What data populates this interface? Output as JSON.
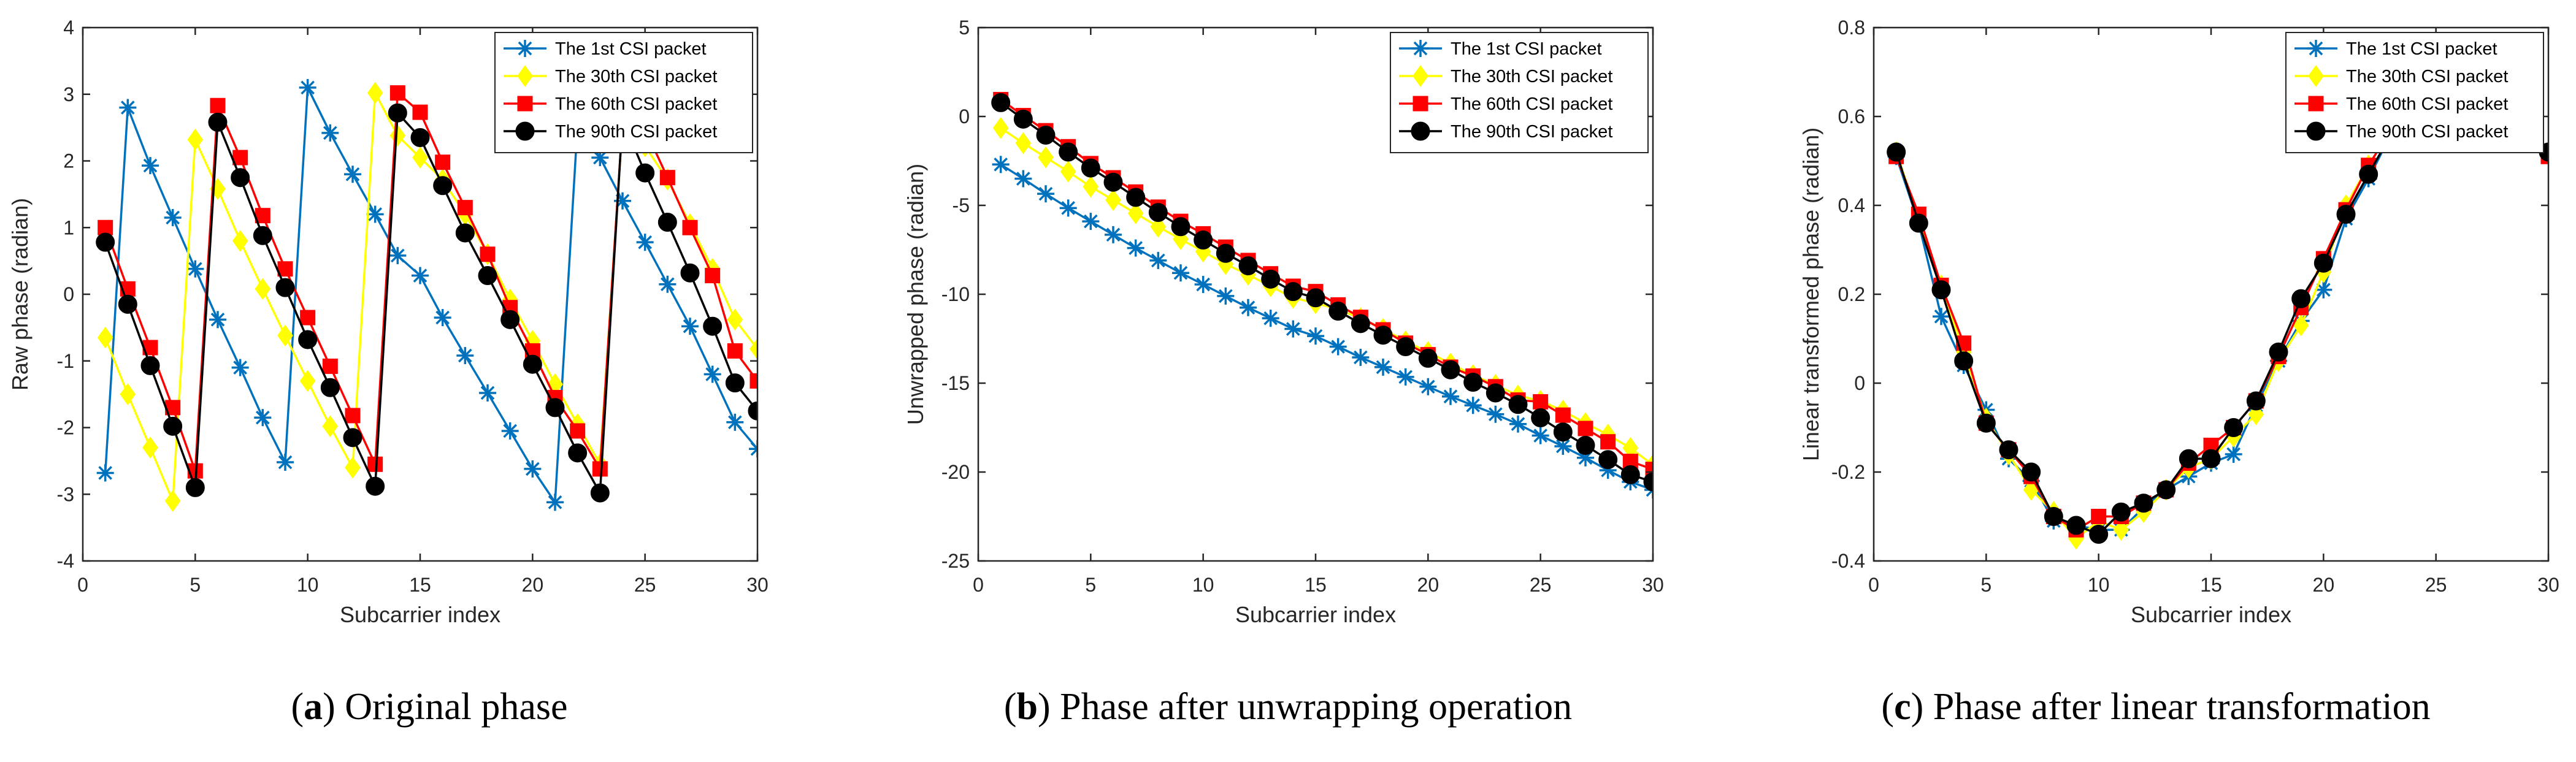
{
  "chart_data": [
    {
      "type": "line",
      "xlabel": "Subcarrier index",
      "ylabel": "Raw phase (radian)",
      "xlim": [
        0,
        30
      ],
      "ylim": [
        -4,
        4
      ],
      "xticks": [
        0,
        5,
        10,
        15,
        20,
        25,
        30
      ],
      "yticks": [
        -4,
        -3,
        -2,
        -1,
        0,
        1,
        2,
        3,
        4
      ],
      "grid": false,
      "legend_position": "top-right",
      "x": [
        1,
        2,
        3,
        4,
        5,
        6,
        7,
        8,
        9,
        10,
        11,
        12,
        13,
        14,
        15,
        16,
        17,
        18,
        19,
        20,
        21,
        22,
        23,
        24,
        25,
        26,
        27,
        28,
        29,
        30
      ],
      "series": [
        {
          "name": "The 1st CSI packet",
          "values": [
            -2.68,
            2.8,
            1.93,
            1.15,
            0.38,
            -0.38,
            -1.1,
            -1.85,
            -2.52,
            3.1,
            2.42,
            1.8,
            1.2,
            0.58,
            0.28,
            -0.35,
            -0.92,
            -1.48,
            -2.05,
            -2.62,
            -3.12,
            2.55,
            2.05,
            1.4,
            0.78,
            0.15,
            -0.48,
            -1.2,
            -1.92,
            -2.32
          ]
        },
        {
          "name": "The 30th CSI packet",
          "values": [
            -0.65,
            -1.5,
            -2.3,
            -3.1,
            2.32,
            1.58,
            0.8,
            0.08,
            -0.62,
            -1.3,
            -1.98,
            -2.6,
            3.02,
            2.38,
            2.05,
            1.72,
            1.2,
            0.6,
            -0.08,
            -0.7,
            -1.35,
            -1.95,
            -2.55,
            2.55,
            2.22,
            1.72,
            1.05,
            0.38,
            -0.38,
            -0.82
          ]
        },
        {
          "name": "The 60th CSI packet",
          "values": [
            1.0,
            0.08,
            -0.8,
            -1.7,
            -2.65,
            2.83,
            2.05,
            1.18,
            0.38,
            -0.35,
            -1.08,
            -1.82,
            -2.55,
            3.02,
            2.73,
            1.98,
            1.3,
            0.6,
            -0.2,
            -0.85,
            -1.55,
            -2.05,
            -2.62,
            2.58,
            2.48,
            1.75,
            1.0,
            0.28,
            -0.85,
            -1.3
          ]
        },
        {
          "name": "The 90th CSI packet",
          "values": [
            0.78,
            -0.15,
            -1.07,
            -1.98,
            -2.9,
            2.58,
            1.75,
            0.88,
            0.1,
            -0.68,
            -1.4,
            -2.15,
            -2.88,
            2.72,
            2.35,
            1.63,
            0.92,
            0.28,
            -0.38,
            -1.05,
            -1.7,
            -2.38,
            -2.98,
            2.62,
            1.82,
            1.08,
            0.32,
            -0.48,
            -1.33,
            -1.75
          ]
        }
      ]
    },
    {
      "type": "line",
      "xlabel": "Subcarrier index",
      "ylabel": "Unwrapped phase (radian)",
      "xlim": [
        0,
        30
      ],
      "ylim": [
        -25,
        5
      ],
      "xticks": [
        0,
        5,
        10,
        15,
        20,
        25,
        30
      ],
      "yticks": [
        -25,
        -20,
        -15,
        -10,
        -5,
        0,
        5
      ],
      "grid": false,
      "legend_position": "top-right",
      "x": [
        1,
        2,
        3,
        4,
        5,
        6,
        7,
        8,
        9,
        10,
        11,
        12,
        13,
        14,
        15,
        16,
        17,
        18,
        19,
        20,
        21,
        22,
        23,
        24,
        25,
        26,
        27,
        28,
        29,
        30
      ],
      "series": [
        {
          "name": "The 1st CSI packet",
          "values": [
            -2.7,
            -3.5,
            -4.35,
            -5.15,
            -5.9,
            -6.65,
            -7.4,
            -8.1,
            -8.8,
            -9.45,
            -10.1,
            -10.75,
            -11.35,
            -11.95,
            -12.35,
            -12.95,
            -13.55,
            -14.1,
            -14.65,
            -15.2,
            -15.75,
            -16.25,
            -16.75,
            -17.3,
            -17.95,
            -18.55,
            -19.2,
            -19.9,
            -20.55,
            -21.0
          ]
        },
        {
          "name": "The 30th CSI packet",
          "values": [
            -0.65,
            -1.5,
            -2.3,
            -3.1,
            -3.95,
            -4.7,
            -5.45,
            -6.2,
            -6.9,
            -7.6,
            -8.3,
            -8.9,
            -9.55,
            -10.2,
            -10.5,
            -10.85,
            -11.35,
            -11.95,
            -12.65,
            -13.25,
            -13.9,
            -14.55,
            -15.1,
            -15.7,
            -16.0,
            -16.55,
            -17.25,
            -17.9,
            -18.65,
            -19.6
          ]
        },
        {
          "name": "The 60th CSI packet",
          "values": [
            0.95,
            0.05,
            -0.8,
            -1.7,
            -2.65,
            -3.45,
            -4.25,
            -5.1,
            -5.9,
            -6.6,
            -7.35,
            -8.1,
            -8.85,
            -9.55,
            -9.85,
            -10.6,
            -11.3,
            -12.0,
            -12.75,
            -13.4,
            -14.1,
            -14.6,
            -15.2,
            -15.95,
            -16.05,
            -16.8,
            -17.55,
            -18.3,
            -19.4,
            -19.85
          ]
        },
        {
          "name": "The 90th CSI packet",
          "values": [
            0.78,
            -0.15,
            -1.05,
            -2.0,
            -2.9,
            -3.7,
            -4.55,
            -5.4,
            -6.2,
            -6.95,
            -7.7,
            -8.4,
            -9.15,
            -9.85,
            -10.2,
            -10.95,
            -11.65,
            -12.3,
            -12.95,
            -13.6,
            -14.25,
            -14.95,
            -15.55,
            -16.2,
            -16.95,
            -17.75,
            -18.5,
            -19.3,
            -20.15,
            -20.55
          ]
        }
      ]
    },
    {
      "type": "line",
      "xlabel": "Subcarrier index",
      "ylabel": "Linear transformed phase (radian)",
      "xlim": [
        0,
        30
      ],
      "ylim": [
        -0.4,
        0.8
      ],
      "xticks": [
        0,
        5,
        10,
        15,
        20,
        25,
        30
      ],
      "yticks": [
        -0.4,
        -0.2,
        0,
        0.2,
        0.4,
        0.6,
        0.8
      ],
      "grid": false,
      "legend_position": "top-right",
      "x": [
        1,
        2,
        3,
        4,
        5,
        6,
        7,
        8,
        9,
        10,
        11,
        12,
        13,
        14,
        15,
        16,
        17,
        18,
        19,
        20,
        21,
        22,
        23,
        24,
        25,
        26,
        27,
        28,
        29,
        30
      ],
      "series": [
        {
          "name": "The 1st CSI packet",
          "values": [
            0.51,
            0.36,
            0.15,
            0.04,
            -0.06,
            -0.17,
            -0.22,
            -0.31,
            -0.32,
            -0.33,
            -0.33,
            -0.28,
            -0.24,
            -0.21,
            -0.18,
            -0.16,
            -0.05,
            0.05,
            0.14,
            0.21,
            0.37,
            0.46,
            0.56,
            0.6,
            0.61,
            0.6,
            0.59,
            0.58,
            0.56,
            0.52
          ]
        },
        {
          "name": "The 30th CSI packet",
          "values": [
            0.52,
            0.37,
            0.22,
            0.07,
            -0.08,
            -0.16,
            -0.24,
            -0.29,
            -0.35,
            -0.31,
            -0.33,
            -0.29,
            -0.24,
            -0.19,
            -0.17,
            -0.12,
            -0.07,
            0.05,
            0.13,
            0.25,
            0.4,
            0.49,
            0.57,
            0.6,
            0.61,
            0.6,
            0.59,
            0.58,
            0.56,
            0.52
          ]
        },
        {
          "name": "The 60th CSI packet",
          "values": [
            0.51,
            0.38,
            0.22,
            0.09,
            -0.09,
            -0.15,
            -0.21,
            -0.3,
            -0.33,
            -0.3,
            -0.3,
            -0.27,
            -0.24,
            -0.18,
            -0.14,
            -0.1,
            -0.04,
            0.06,
            0.17,
            0.28,
            0.39,
            0.49,
            0.57,
            0.6,
            0.61,
            0.6,
            0.59,
            0.58,
            0.56,
            0.51
          ]
        },
        {
          "name": "The 90th CSI packet",
          "values": [
            0.52,
            0.36,
            0.21,
            0.05,
            -0.09,
            -0.15,
            -0.2,
            -0.3,
            -0.32,
            -0.34,
            -0.29,
            -0.27,
            -0.24,
            -0.17,
            -0.17,
            -0.1,
            -0.04,
            0.07,
            0.19,
            0.27,
            0.38,
            0.47,
            0.56,
            0.6,
            0.61,
            0.6,
            0.59,
            0.58,
            0.56,
            0.52
          ]
        }
      ]
    }
  ],
  "series_style": [
    {
      "color": "#0072BD",
      "marker": "asterisk"
    },
    {
      "color": "#FFFF00",
      "marker": "diamond"
    },
    {
      "color": "#FF0000",
      "marker": "square"
    },
    {
      "color": "#000000",
      "marker": "circle"
    }
  ],
  "captions": [
    {
      "letter": "a",
      "text": "Original phase"
    },
    {
      "letter": "b",
      "text": "Phase after unwrapping operation"
    },
    {
      "letter": "c",
      "text": "Phase after linear transformation"
    }
  ]
}
